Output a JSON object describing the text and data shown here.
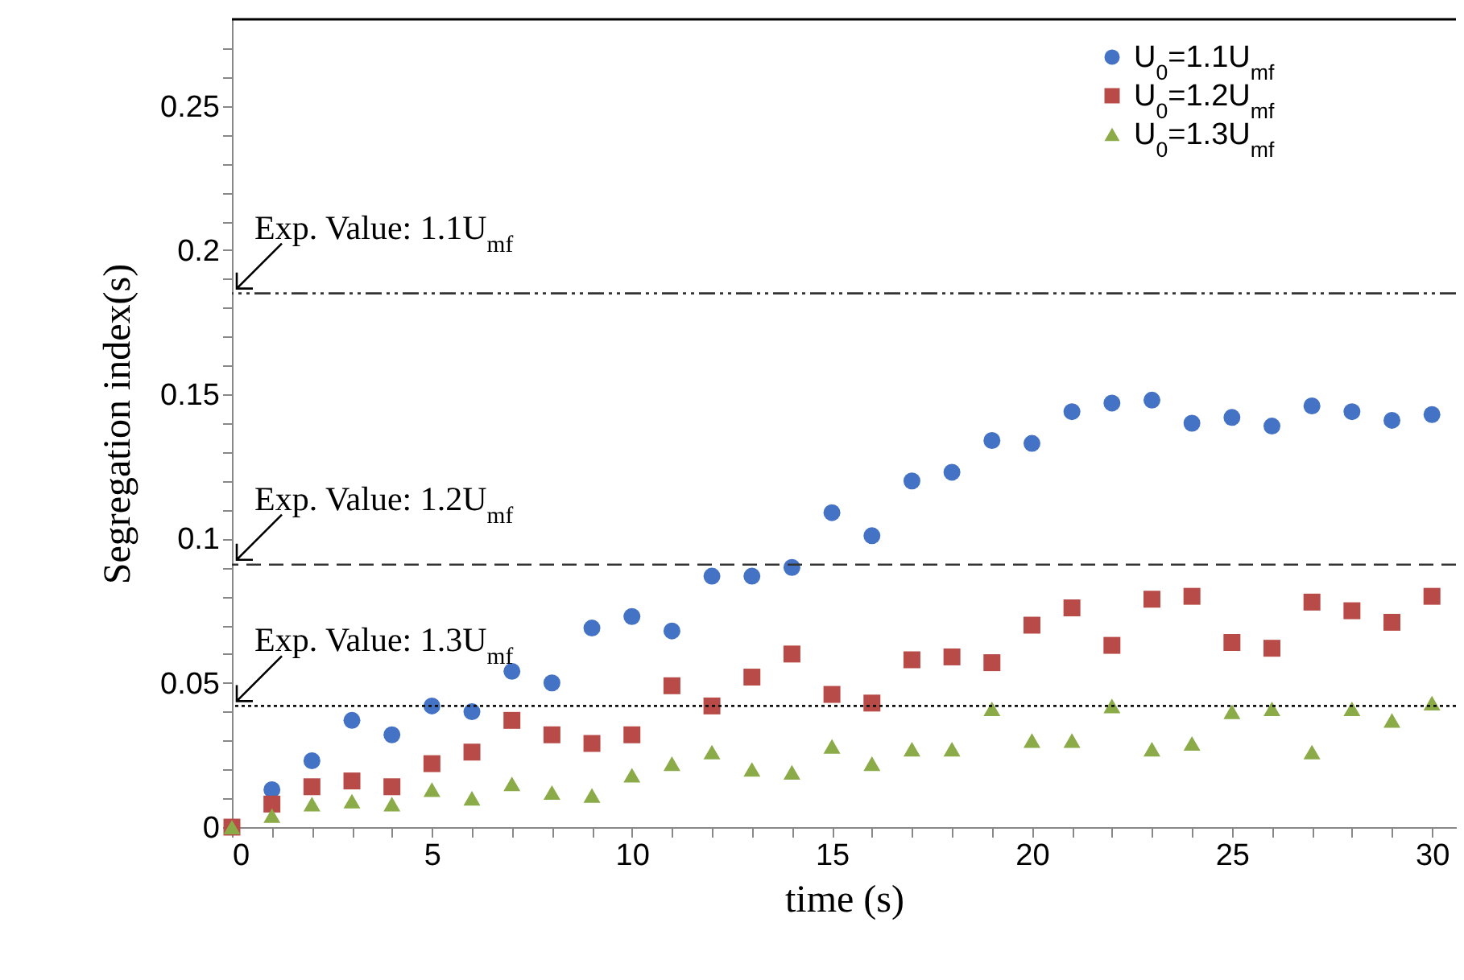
{
  "chart_data": {
    "type": "scatter",
    "xlabel": "time (s)",
    "ylabel": "Segregation index(s)",
    "x": [
      0,
      1,
      2,
      3,
      4,
      5,
      6,
      7,
      8,
      9,
      10,
      11,
      12,
      13,
      14,
      15,
      16,
      17,
      18,
      19,
      20,
      21,
      22,
      23,
      24,
      25,
      26,
      27,
      28,
      29,
      30
    ],
    "series": [
      {
        "name": "U$_{0}$=1.1U$_{mf}$",
        "color": "#4472c4",
        "marker": "circle",
        "values": [
          null,
          0.013,
          0.023,
          0.037,
          0.032,
          0.042,
          0.04,
          0.054,
          0.05,
          0.069,
          0.073,
          0.068,
          0.087,
          0.087,
          0.09,
          0.109,
          0.101,
          0.12,
          0.123,
          0.134,
          0.133,
          0.144,
          0.147,
          0.148,
          0.14,
          0.142,
          0.139,
          0.146,
          0.144,
          0.141,
          0.143
        ]
      },
      {
        "name": "U$_{0}$=1.2U$_{mf}$",
        "color": "#b84a47",
        "marker": "square",
        "values": [
          0,
          0.008,
          0.014,
          0.016,
          0.014,
          0.022,
          0.026,
          0.037,
          0.032,
          0.029,
          0.032,
          0.049,
          0.042,
          0.052,
          0.06,
          0.046,
          0.043,
          0.058,
          0.059,
          0.057,
          0.07,
          0.076,
          0.063,
          0.079,
          0.08,
          0.064,
          0.062,
          0.078,
          0.075,
          0.071,
          0.08
        ]
      },
      {
        "name": "U$_{0}$=1.3U$_{mf}$",
        "color": "#8aab48",
        "marker": "triangle",
        "values": [
          0,
          0.004,
          0.008,
          0.009,
          0.008,
          0.013,
          0.01,
          0.015,
          0.012,
          0.011,
          0.018,
          0.022,
          0.026,
          0.02,
          0.019,
          0.028,
          0.022,
          0.027,
          0.027,
          0.041,
          0.03,
          0.03,
          0.042,
          0.027,
          0.029,
          0.04,
          0.041,
          0.026,
          0.041,
          0.037,
          0.043
        ]
      }
    ],
    "ref_lines": [
      {
        "axis": "y",
        "value": 0.185,
        "color": "#333333",
        "line_style": "dashdotdot"
      },
      {
        "axis": "y",
        "value": 0.091,
        "color": "#333333",
        "line_style": "dashed"
      },
      {
        "axis": "y",
        "value": 0.042,
        "color": "#111111",
        "line_style": "dotted"
      }
    ],
    "annotations": [
      {
        "text": "Exp. Value:  1.1U$_{mf}$",
        "y": 0.185
      },
      {
        "text": "Exp. Value:  1.2U$_{mf}$",
        "y": 0.091
      },
      {
        "text": "Exp. Value:  1.3U$_{mf}$",
        "y": 0.042
      }
    ],
    "xlim": [
      0,
      30.6
    ],
    "ylim": [
      0,
      0.28
    ],
    "xticks": [
      0,
      {
        "value": 1,
        "label": null
      },
      {
        "value": 2,
        "label": null
      },
      {
        "value": 3,
        "label": null
      },
      {
        "value": 4,
        "label": null
      },
      5,
      {
        "value": 6,
        "label": null
      },
      {
        "value": 7,
        "label": null
      },
      {
        "value": 8,
        "label": null
      },
      {
        "value": 9,
        "label": null
      },
      10,
      {
        "value": 11,
        "label": null
      },
      {
        "value": 12,
        "label": null
      },
      {
        "value": 13,
        "label": null
      },
      {
        "value": 14,
        "label": null
      },
      15,
      {
        "value": 16,
        "label": null
      },
      {
        "value": 17,
        "label": null
      },
      {
        "value": 18,
        "label": null
      },
      {
        "value": 19,
        "label": null
      },
      20,
      {
        "value": 21,
        "label": null
      },
      {
        "value": 22,
        "label": null
      },
      {
        "value": 23,
        "label": null
      },
      {
        "value": 24,
        "label": null
      },
      25,
      {
        "value": 26,
        "label": null
      },
      {
        "value": 27,
        "label": null
      },
      {
        "value": 28,
        "label": null
      },
      {
        "value": 29,
        "label": null
      },
      30
    ],
    "yticks": [
      0,
      {
        "value": 0.01,
        "label": null
      },
      {
        "value": 0.02,
        "label": null
      },
      {
        "value": 0.03,
        "label": null
      },
      {
        "value": 0.04,
        "label": null
      },
      0.05,
      {
        "value": 0.06,
        "label": null
      },
      {
        "value": 0.07,
        "label": null
      },
      {
        "value": 0.08,
        "label": null
      },
      {
        "value": 0.09,
        "label": null
      },
      0.1,
      {
        "value": 0.11,
        "label": null
      },
      {
        "value": 0.12,
        "label": null
      },
      {
        "value": 0.13,
        "label": null
      },
      {
        "value": 0.14,
        "label": null
      },
      0.15,
      {
        "value": 0.16,
        "label": null
      },
      {
        "value": 0.17,
        "label": null
      },
      {
        "value": 0.18,
        "label": null
      },
      {
        "value": 0.19,
        "label": null
      },
      0.2,
      {
        "value": 0.21,
        "label": null
      },
      {
        "value": 0.22,
        "label": null
      },
      {
        "value": 0.23,
        "label": null
      },
      {
        "value": 0.24,
        "label": null
      },
      0.25,
      {
        "value": 0.26,
        "label": null
      },
      {
        "value": 0.27,
        "label": null
      }
    ],
    "grid": false,
    "legend": "top right"
  }
}
